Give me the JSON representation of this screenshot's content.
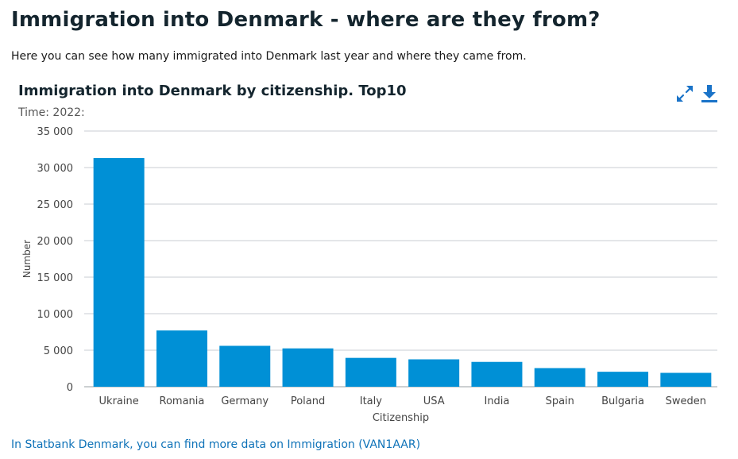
{
  "page": {
    "title": "Immigration into Denmark - where are they from?",
    "intro": "Here you can see how many immigrated into Denmark last year and where they came from."
  },
  "toolbar": {
    "expand_icon": "expand-icon",
    "download_icon": "download-icon",
    "icon_color": "#1a73c8"
  },
  "chart_data": {
    "type": "bar",
    "title": "Immigration into Denmark by citizenship. Top10",
    "subtitle": "Time: 2022:",
    "xlabel": "Citizenship",
    "ylabel": "Number",
    "categories": [
      "Ukraine",
      "Romania",
      "Germany",
      "Poland",
      "Italy",
      "USA",
      "India",
      "Spain",
      "Bulgaria",
      "Sweden"
    ],
    "values": [
      31300,
      7700,
      5600,
      5250,
      3950,
      3750,
      3400,
      2550,
      2050,
      1900
    ],
    "ylim": [
      0,
      35000
    ],
    "yticks": [
      0,
      5000,
      10000,
      15000,
      20000,
      25000,
      30000,
      35000
    ],
    "ytick_labels": [
      "0",
      "5 000",
      "10 000",
      "15 000",
      "20 000",
      "25 000",
      "30 000",
      "35 000"
    ],
    "bar_color": "#0090d6",
    "grid": true,
    "legend": "none"
  },
  "footer": {
    "link_text": "In Statbank Denmark, you can find more data on Immigration (VAN1AAR)"
  }
}
